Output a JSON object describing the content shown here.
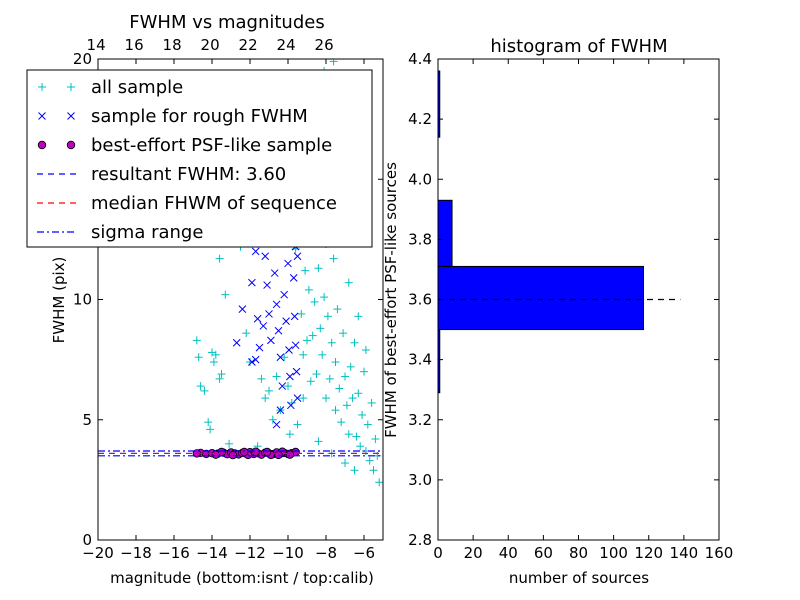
{
  "chart_data": [
    {
      "type": "scatter",
      "title": "FWHM vs magnitudes",
      "xlabel": "magnitude (bottom:isnt / top:calib)",
      "ylabel": "FWHM (pix)",
      "xlim": [
        -20,
        -5
      ],
      "ylim": [
        0,
        20
      ],
      "x_ticks": [
        -20,
        -18,
        -16,
        -14,
        -12,
        -10,
        -8,
        -6
      ],
      "x_tick_labels": [
        "−20",
        "−18",
        "−16",
        "−14",
        "−12",
        "−10",
        "−8",
        "−6"
      ],
      "y_ticks": [
        0,
        5,
        10,
        15,
        20
      ],
      "y_tick_labels": [
        "0",
        "5",
        "10",
        "15",
        "20"
      ],
      "top_ticks": [
        14,
        16,
        18,
        20,
        22,
        24,
        26
      ],
      "top_tick_labels": [
        "14",
        "16",
        "18",
        "20",
        "22",
        "24",
        "26"
      ],
      "calib_offset": 34.1,
      "legend": {
        "placement": "upper-left",
        "entries": [
          {
            "label": "all sample",
            "marker": "plus",
            "color": "#00bfbf"
          },
          {
            "label": "sample for rough FWHM",
            "marker": "x",
            "color": "#0000ff"
          },
          {
            "label": "best-effort PSF-like sample",
            "marker": "circle",
            "color": "#bf00bf"
          },
          {
            "label": "resultant FWHM: 3.60",
            "marker": "dashed",
            "color": "#0000ff"
          },
          {
            "label": "median FHWM of sequence",
            "marker": "dashed",
            "color": "#ff0000"
          },
          {
            "label": "sigma range",
            "marker": "dashdot",
            "color": "#0000ff"
          }
        ]
      },
      "series": [
        {
          "name": "all sample",
          "marker": "plus",
          "color": "#00bfbf",
          "points": [
            [
              -14.6,
              6.4
            ],
            [
              -14.8,
              8.3
            ],
            [
              -14.7,
              7.6
            ],
            [
              -14.4,
              6.2
            ],
            [
              -14.2,
              4.9
            ],
            [
              -14.1,
              4.6
            ],
            [
              -14.0,
              7.8
            ],
            [
              -13.9,
              7.4
            ],
            [
              -13.8,
              7.7
            ],
            [
              -13.6,
              6.7
            ],
            [
              -13.5,
              6.9
            ],
            [
              -13.3,
              10.2
            ],
            [
              -13.1,
              4.0
            ],
            [
              -13.6,
              11.7
            ],
            [
              -12.5,
              12.2
            ],
            [
              -12.2,
              8.6
            ],
            [
              -12.0,
              7.4
            ],
            [
              -11.6,
              3.9
            ],
            [
              -11.4,
              6.7
            ],
            [
              -11.2,
              5.9
            ],
            [
              -11.0,
              6.2
            ],
            [
              -10.8,
              5.0
            ],
            [
              -10.6,
              6.8
            ],
            [
              -10.4,
              5.4
            ],
            [
              -10.2,
              7.6
            ],
            [
              -10.0,
              6.4
            ],
            [
              -9.9,
              4.4
            ],
            [
              -9.8,
              5.7
            ],
            [
              -9.6,
              12.1
            ],
            [
              -9.4,
              13.4
            ],
            [
              -9.3,
              9.4
            ],
            [
              -9.2,
              7.7
            ],
            [
              -9.1,
              11.2
            ],
            [
              -9.0,
              8.3
            ],
            [
              -8.9,
              13.9
            ],
            [
              -8.9,
              10.4
            ],
            [
              -8.8,
              6.6
            ],
            [
              -8.7,
              12.5
            ],
            [
              -8.7,
              8.5
            ],
            [
              -8.6,
              9.9
            ],
            [
              -8.5,
              6.9
            ],
            [
              -8.4,
              11.3
            ],
            [
              -8.3,
              8.8
            ],
            [
              -8.2,
              14.7
            ],
            [
              -8.2,
              7.7
            ],
            [
              -8.1,
              10.1
            ],
            [
              -8.0,
              5.9
            ],
            [
              -8.0,
              12.3
            ],
            [
              -7.9,
              9.3
            ],
            [
              -7.8,
              6.7
            ],
            [
              -7.8,
              16.2
            ],
            [
              -7.7,
              8.2
            ],
            [
              -7.6,
              11.7
            ],
            [
              -7.5,
              5.4
            ],
            [
              -7.5,
              7.4
            ],
            [
              -7.4,
              9.6
            ],
            [
              -7.3,
              6.3
            ],
            [
              -7.2,
              13.1
            ],
            [
              -7.2,
              4.9
            ],
            [
              -7.1,
              8.6
            ],
            [
              -7.0,
              6.8
            ],
            [
              -6.9,
              5.6
            ],
            [
              -6.8,
              10.7
            ],
            [
              -6.8,
              4.4
            ],
            [
              -6.7,
              7.2
            ],
            [
              -6.6,
              5.9
            ],
            [
              -6.5,
              8.2
            ],
            [
              -6.4,
              4.3
            ],
            [
              -6.3,
              6.1
            ],
            [
              -6.2,
              3.9
            ],
            [
              -6.1,
              5.2
            ],
            [
              -6.0,
              7.0
            ],
            [
              -5.9,
              3.7
            ],
            [
              -5.8,
              4.8
            ],
            [
              -5.7,
              3.3
            ],
            [
              -5.6,
              5.7
            ],
            [
              -5.5,
              2.9
            ],
            [
              -5.4,
              4.2
            ],
            [
              -5.3,
              3.5
            ],
            [
              -5.2,
              2.4
            ],
            [
              -9.1,
              16.9
            ],
            [
              -8.6,
              18.3
            ],
            [
              -8.1,
              19.5
            ],
            [
              -7.6,
              19.9
            ],
            [
              -7.1,
              15.4
            ],
            [
              -6.7,
              12.8
            ],
            [
              -6.3,
              9.3
            ],
            [
              -5.9,
              7.9
            ],
            [
              -9.5,
              4.8
            ],
            [
              -9.2,
              5.9
            ],
            [
              -8.4,
              4.1
            ],
            [
              -7.7,
              3.6
            ],
            [
              -7.0,
              3.2
            ],
            [
              -6.5,
              2.9
            ]
          ]
        },
        {
          "name": "sample for rough FWHM",
          "marker": "x",
          "color": "#0000ff",
          "points": [
            [
              -12.0,
              15.2
            ],
            [
              -11.9,
              14.3
            ],
            [
              -11.8,
              12.8
            ],
            [
              -11.7,
              12.0
            ],
            [
              -11.9,
              10.7
            ],
            [
              -11.6,
              9.2
            ],
            [
              -11.5,
              8.0
            ],
            [
              -11.7,
              7.5
            ],
            [
              -11.3,
              13.3
            ],
            [
              -11.2,
              11.8
            ],
            [
              -11.1,
              10.6
            ],
            [
              -11.0,
              9.4
            ],
            [
              -10.9,
              8.3
            ],
            [
              -10.8,
              12.4
            ],
            [
              -10.7,
              11.1
            ],
            [
              -10.6,
              9.8
            ],
            [
              -10.5,
              8.7
            ],
            [
              -10.4,
              7.6
            ],
            [
              -10.3,
              6.4
            ],
            [
              -10.2,
              10.2
            ],
            [
              -10.1,
              9.1
            ],
            [
              -10.0,
              11.5
            ],
            [
              -9.95,
              7.9
            ],
            [
              -9.9,
              6.8
            ],
            [
              -9.85,
              5.6
            ],
            [
              -9.8,
              13.7
            ],
            [
              -9.75,
              12.4
            ],
            [
              -9.7,
              10.9
            ],
            [
              -9.65,
              9.3
            ],
            [
              -9.6,
              8.1
            ],
            [
              -9.55,
              7.0
            ],
            [
              -9.5,
              5.9
            ],
            [
              -9.5,
              11.8
            ],
            [
              -10.4,
              5.4
            ],
            [
              -10.6,
              4.8
            ],
            [
              -11.3,
              8.9
            ],
            [
              -12.7,
              8.2
            ],
            [
              -11.9,
              7.4
            ],
            [
              -12.4,
              9.6
            ],
            [
              -10.9,
              14.9
            ],
            [
              -11.5,
              15.7
            ],
            [
              -10.2,
              13.1
            ],
            [
              -9.7,
              14.6
            ],
            [
              -9.6,
              12.2
            ]
          ]
        },
        {
          "name": "best-effort PSF-like sample",
          "marker": "circle",
          "color": "#bf00bf",
          "points": [
            [
              -14.6,
              3.62
            ],
            [
              -14.3,
              3.58
            ],
            [
              -14.0,
              3.61
            ],
            [
              -13.7,
              3.59
            ],
            [
              -13.4,
              3.63
            ],
            [
              -13.2,
              3.57
            ],
            [
              -13.0,
              3.64
            ],
            [
              -12.8,
              3.6
            ],
            [
              -12.6,
              3.56
            ],
            [
              -12.4,
              3.62
            ],
            [
              -12.2,
              3.59
            ],
            [
              -12.0,
              3.65
            ],
            [
              -11.8,
              3.58
            ],
            [
              -11.6,
              3.61
            ],
            [
              -11.4,
              3.55
            ],
            [
              -11.2,
              3.63
            ],
            [
              -11.0,
              3.6
            ],
            [
              -10.8,
              3.57
            ],
            [
              -10.6,
              3.64
            ],
            [
              -10.4,
              3.59
            ],
            [
              -10.2,
              3.62
            ],
            [
              -10.0,
              3.58
            ],
            [
              -9.8,
              3.61
            ],
            [
              -9.6,
              3.66
            ],
            [
              -13.5,
              3.66
            ],
            [
              -12.9,
              3.53
            ],
            [
              -12.1,
              3.54
            ],
            [
              -11.7,
              3.67
            ],
            [
              -10.9,
              3.54
            ],
            [
              -10.3,
              3.67
            ],
            [
              -9.9,
              3.55
            ],
            [
              -14.8,
              3.6
            ],
            [
              -13.8,
              3.55
            ],
            [
              -12.3,
              3.66
            ],
            [
              -11.1,
              3.66
            ],
            [
              -10.5,
              3.54
            ]
          ]
        }
      ],
      "lines": [
        {
          "name": "resultant FWHM: 3.60",
          "y": 3.6,
          "style": "dashed",
          "color": "#0000ff"
        },
        {
          "name": "median FHWM of sequence",
          "y": 3.6,
          "style": "dashed",
          "color": "#ff0000"
        },
        {
          "name": "sigma range",
          "y": 3.5,
          "style": "dashdot",
          "color": "#0000ff"
        },
        {
          "name": "sigma range",
          "y": 3.7,
          "style": "dashdot",
          "color": "#0000ff"
        }
      ]
    },
    {
      "type": "bar",
      "orientation": "horizontal",
      "title": "histogram of FWHM",
      "xlabel": "number of sources",
      "ylabel": "FWHM of best-effort PSF-like sources",
      "xlim": [
        0,
        160
      ],
      "ylim": [
        2.8,
        4.4
      ],
      "x_ticks": [
        0,
        20,
        40,
        60,
        80,
        100,
        120,
        140,
        160
      ],
      "x_tick_labels": [
        "0",
        "20",
        "40",
        "60",
        "80",
        "100",
        "120",
        "140",
        "160"
      ],
      "y_ticks": [
        2.8,
        3.0,
        3.2,
        3.4,
        3.6,
        3.8,
        4.0,
        4.2,
        4.4
      ],
      "y_tick_labels": [
        "2.8",
        "3.0",
        "3.2",
        "3.4",
        "3.6",
        "3.8",
        "4.0",
        "4.2",
        "4.4"
      ],
      "bins": [
        {
          "low": 3.29,
          "high": 3.5,
          "count": 1
        },
        {
          "low": 3.5,
          "high": 3.71,
          "count": 117
        },
        {
          "low": 3.71,
          "high": 3.93,
          "count": 8
        },
        {
          "low": 3.93,
          "high": 4.14,
          "count": 0
        },
        {
          "low": 4.14,
          "high": 4.36,
          "count": 1
        }
      ],
      "bar_color": "#0000ff",
      "reference_line": {
        "y": 3.6,
        "x_range": [
          0,
          138
        ],
        "style": "dashed",
        "color": "#000000"
      }
    }
  ]
}
